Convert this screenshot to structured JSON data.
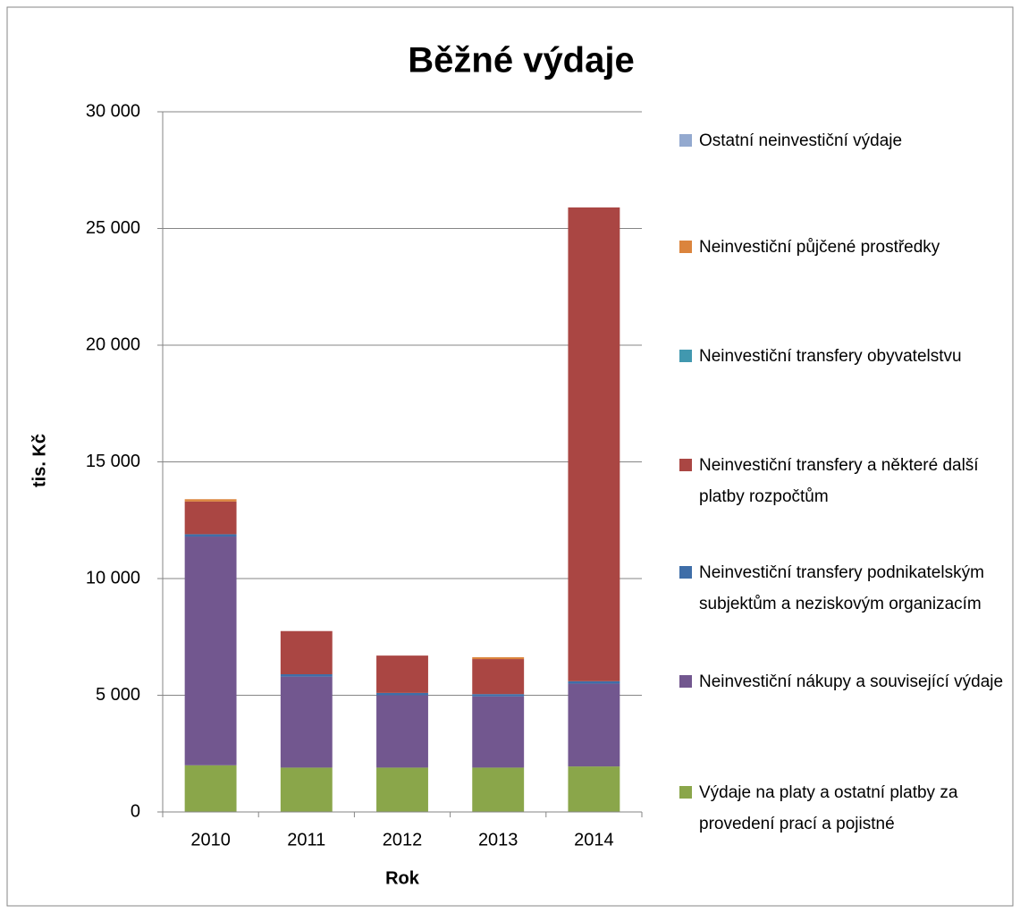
{
  "chart_data": {
    "type": "stacked_bar",
    "title": "Běžné výdaje",
    "x_label": "Rok",
    "y_label": "tis. Kč",
    "categories": [
      "2010",
      "2011",
      "2012",
      "2013",
      "2014"
    ],
    "series": [
      {
        "name": "Výdaje na platy a ostatní platby za provedení prací a pojistné",
        "color": "#8aa64a",
        "values": [
          2000,
          1900,
          1900,
          1900,
          1950
        ]
      },
      {
        "name": "Neinvestiční nákupy a související výdaje",
        "color": "#72578f",
        "values": [
          9800,
          3900,
          3100,
          3050,
          3550
        ]
      },
      {
        "name": "Neinvestiční transfery podnikatelským subjektům a neziskovým organizacím",
        "color": "#3f6ea8",
        "values": [
          100,
          100,
          100,
          100,
          100
        ]
      },
      {
        "name": "Neinvestiční transfery a některé další platby rozpočtům",
        "color": "#aa4643",
        "values": [
          1400,
          1850,
          1600,
          1500,
          20300
        ]
      },
      {
        "name": "Neinvestiční transfery obyvatelstvu",
        "color": "#4198af",
        "values": [
          0,
          0,
          0,
          0,
          0
        ]
      },
      {
        "name": "Neinvestiční půjčené prostředky",
        "color": "#db843d",
        "values": [
          100,
          0,
          0,
          80,
          0
        ]
      },
      {
        "name": "Ostatní neinvestiční výdaje",
        "color": "#93a9cf",
        "values": [
          0,
          0,
          0,
          0,
          0
        ]
      }
    ],
    "ylim": [
      0,
      30000
    ],
    "yticks": [
      0,
      {
        "value": 5000,
        "label": "5 000"
      },
      {
        "value": 10000,
        "label": "10 000"
      },
      {
        "value": 15000,
        "label": "15 000"
      },
      {
        "value": 20000,
        "label": "20 000"
      },
      {
        "value": 25000,
        "label": "25 000"
      },
      {
        "value": 30000,
        "label": "30 000"
      }
    ],
    "grid": true,
    "legend": "right"
  }
}
